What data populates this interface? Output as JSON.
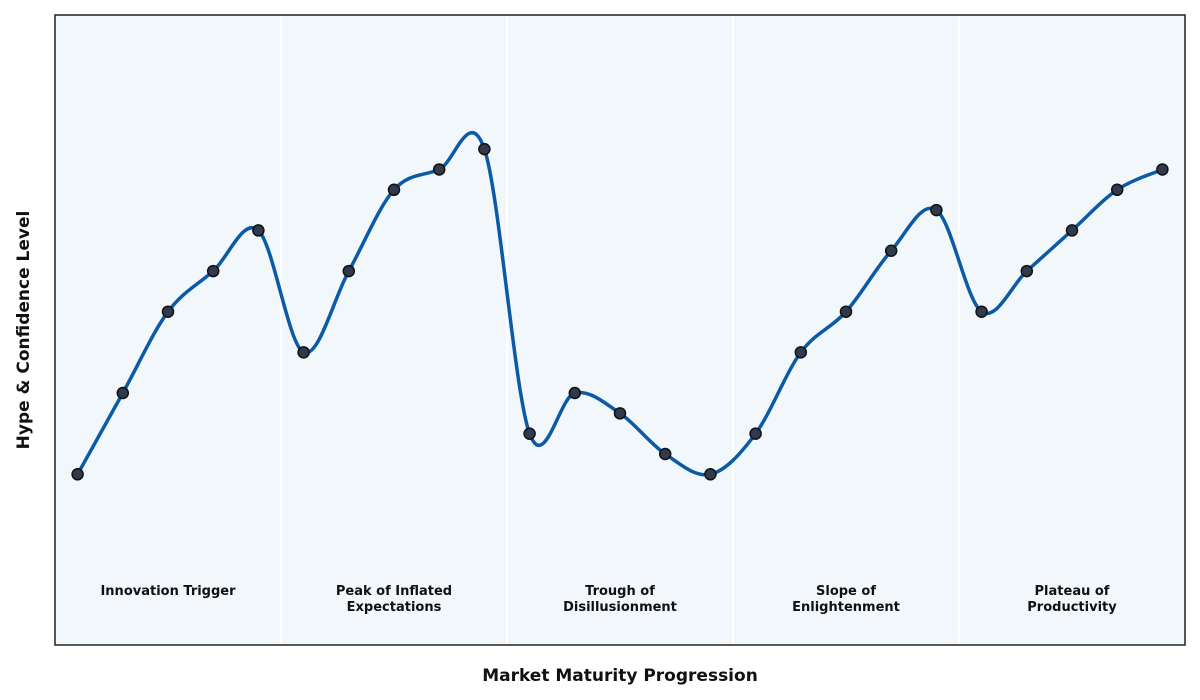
{
  "chart_data": {
    "type": "line",
    "title": "",
    "xlabel": "Market Maturity Progression",
    "ylabel": "Hype & Confidence Level",
    "x": [
      1,
      2,
      3,
      4,
      5,
      6,
      7,
      8,
      9,
      10,
      11,
      12,
      13,
      14,
      15,
      16,
      17,
      18,
      19,
      20,
      21,
      22,
      23,
      24,
      25
    ],
    "xlim": [
      0.5,
      25.5
    ],
    "ylim": [
      -0.2,
      15.3
    ],
    "grid": false,
    "legend": "none",
    "phases": [
      {
        "label_lines": [
          "Innovation Trigger"
        ],
        "x_start": 0.5,
        "x_end": 5.5
      },
      {
        "label_lines": [
          "Peak of Inflated",
          "Expectations"
        ],
        "x_start": 5.5,
        "x_end": 10.5
      },
      {
        "label_lines": [
          "Trough of",
          "Disillusionment"
        ],
        "x_start": 10.5,
        "x_end": 15.5
      },
      {
        "label_lines": [
          "Slope of",
          "Enlightenment"
        ],
        "x_start": 15.5,
        "x_end": 20.5
      },
      {
        "label_lines": [
          "Plateau of",
          "Productivity"
        ],
        "x_start": 20.5,
        "x_end": 25.5
      }
    ],
    "series": [
      {
        "values": [
          4.0,
          6.0,
          8.0,
          9.0,
          10.0,
          7.0,
          9.0,
          11.0,
          11.5,
          12.0,
          5.0,
          6.0,
          5.5,
          4.5,
          4.0,
          5.0,
          7.0,
          8.0,
          9.5,
          10.5,
          8.0,
          9.0,
          10.0,
          11.0,
          11.5
        ],
        "color": "#0b5aa6",
        "marker_fill": "#2f3b4c",
        "marker_stroke": "#111111"
      }
    ]
  },
  "colors": {
    "plot_background": "#f2f7fc",
    "frame": "#222222",
    "phase_divider": "#ffffff"
  }
}
